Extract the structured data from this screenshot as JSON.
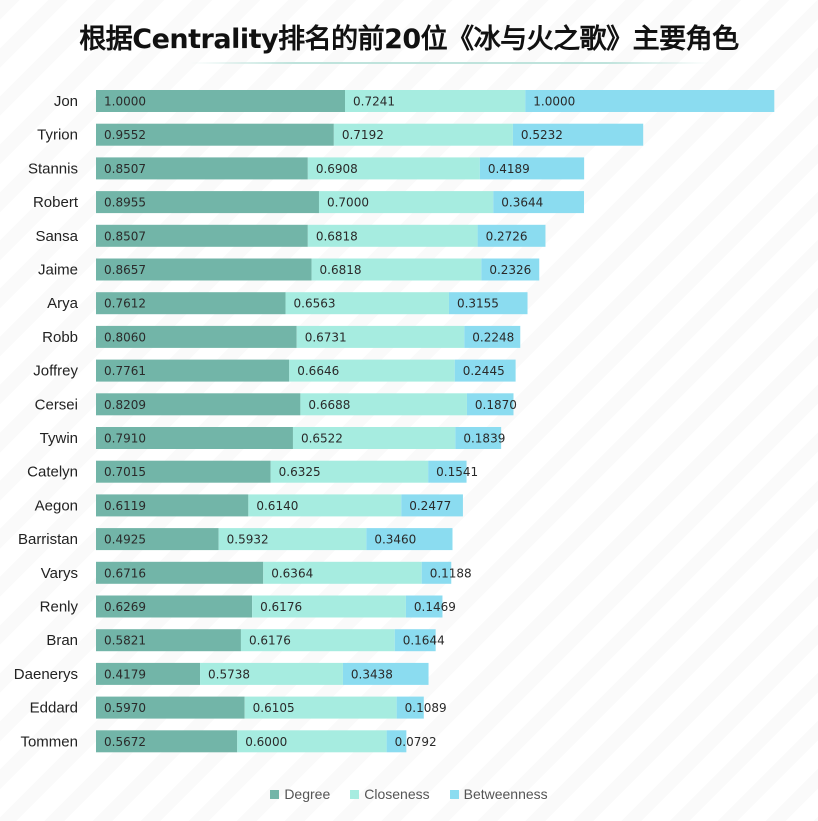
{
  "chart_data": {
    "type": "bar",
    "stacked": true,
    "orientation": "horizontal",
    "title": "根据Centrality排名的前20位《冰与火之歌》主要角色",
    "categories": [
      "Jon",
      "Tyrion",
      "Stannis",
      "Robert",
      "Sansa",
      "Jaime",
      "Arya",
      "Robb",
      "Joffrey",
      "Cersei",
      "Tywin",
      "Catelyn",
      "Aegon",
      "Barristan",
      "Varys",
      "Renly",
      "Bran",
      "Daenerys",
      "Eddard",
      "Tommen"
    ],
    "series": [
      {
        "name": "Degree",
        "color": "#72b5a8",
        "values": [
          1.0,
          0.9552,
          0.8507,
          0.8955,
          0.8507,
          0.8657,
          0.7612,
          0.806,
          0.7761,
          0.8209,
          0.791,
          0.7015,
          0.6119,
          0.4925,
          0.6716,
          0.6269,
          0.5821,
          0.4179,
          0.597,
          0.5672
        ],
        "labels": [
          "1.0000",
          "0.9552",
          "0.8507",
          "0.8955",
          "0.8507",
          "0.8657",
          "0.7612",
          "0.8060",
          "0.7761",
          "0.8209",
          "0.7910",
          "0.7015",
          "0.6119",
          "0.4925",
          "0.6716",
          "0.6269",
          "0.5821",
          "0.4179",
          "0.5970",
          "0.5672"
        ]
      },
      {
        "name": "Closeness",
        "color": "#a6ece0",
        "values": [
          0.7241,
          0.7192,
          0.6908,
          0.7,
          0.6818,
          0.6818,
          0.6563,
          0.6731,
          0.6646,
          0.6688,
          0.6522,
          0.6325,
          0.614,
          0.5932,
          0.6364,
          0.6176,
          0.6176,
          0.5738,
          0.6105,
          0.6
        ],
        "labels": [
          "0.7241",
          "0.7192",
          "0.6908",
          "0.7000",
          "0.6818",
          "0.6818",
          "0.6563",
          "0.6731",
          "0.6646",
          "0.6688",
          "0.6522",
          "0.6325",
          "0.6140",
          "0.5932",
          "0.6364",
          "0.6176",
          "0.6176",
          "0.5738",
          "0.6105",
          "0.6000"
        ]
      },
      {
        "name": "Betweenness",
        "color": "#8bdcf0",
        "values": [
          1.0,
          0.5232,
          0.4189,
          0.3644,
          0.2726,
          0.2326,
          0.3155,
          0.2248,
          0.2445,
          0.187,
          0.1839,
          0.1541,
          0.2477,
          0.346,
          0.1188,
          0.1469,
          0.1644,
          0.3438,
          0.1089,
          0.0792
        ],
        "labels": [
          "1.0000",
          "0.5232",
          "0.4189",
          "0.3644",
          "0.2726",
          "0.2326",
          "0.3155",
          "0.2248",
          "0.2445",
          "0.1870",
          "0.1839",
          "0.1541",
          "0.2477",
          "0.3460",
          "0.1188",
          "0.1469",
          "0.1644",
          "0.3438",
          "0.1089",
          "0.0792"
        ]
      }
    ],
    "legend": {
      "position": "bottom"
    },
    "grid": false
  }
}
